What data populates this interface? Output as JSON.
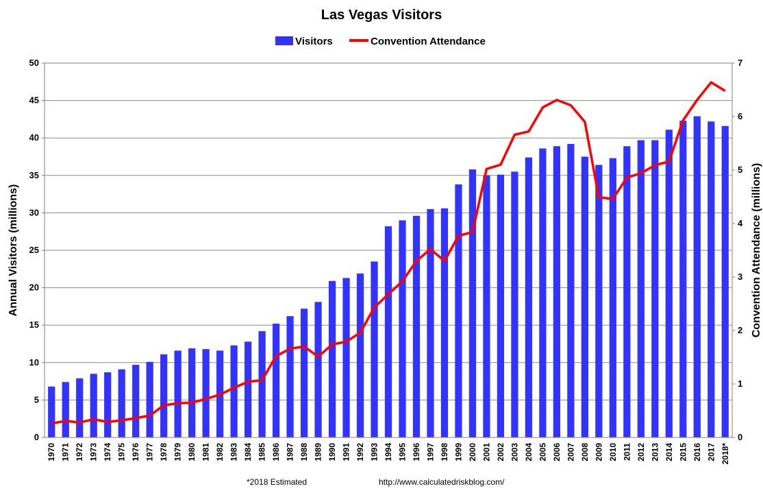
{
  "chart_data": {
    "type": "bar",
    "title": "Las Vegas Visitors",
    "ylabel": "Annual Visitors (millions)",
    "y2label": "Convention Attendance (millions)",
    "ylim": [
      0,
      50
    ],
    "y2lim": [
      0,
      7
    ],
    "yticks": [
      0,
      5,
      10,
      15,
      20,
      25,
      30,
      35,
      40,
      45,
      50
    ],
    "y2ticks": [
      0,
      1,
      2,
      3,
      4,
      5,
      6,
      7
    ],
    "grid": true,
    "legend_position": "top-center",
    "categories": [
      "1970",
      "1971",
      "1972",
      "1973",
      "1974",
      "1975",
      "1976",
      "1977",
      "1978",
      "1979",
      "1980",
      "1981",
      "1982",
      "1983",
      "1984",
      "1985",
      "1986",
      "1987",
      "1988",
      "1989",
      "1990",
      "1991",
      "1992",
      "1993",
      "1994",
      "1995",
      "1996",
      "1997",
      "1998",
      "1999",
      "2000",
      "2001",
      "2002",
      "2003",
      "2004",
      "2005",
      "2006",
      "2007",
      "2008",
      "2009",
      "2010",
      "2011",
      "2012",
      "2013",
      "2014",
      "2015",
      "2016",
      "2017",
      "2018*"
    ],
    "series": [
      {
        "name": "Visitors",
        "type": "bar",
        "axis": "left",
        "color": "#3333ff",
        "values": [
          6.8,
          7.4,
          7.9,
          8.5,
          8.7,
          9.1,
          9.7,
          10.1,
          11.1,
          11.6,
          11.9,
          11.8,
          11.6,
          12.3,
          12.8,
          14.2,
          15.2,
          16.2,
          17.2,
          18.1,
          20.9,
          21.3,
          21.9,
          23.5,
          28.2,
          29.0,
          29.6,
          30.5,
          30.6,
          33.8,
          35.8,
          35.0,
          35.1,
          35.5,
          37.4,
          38.6,
          38.9,
          39.2,
          37.5,
          36.4,
          37.3,
          38.9,
          39.7,
          39.7,
          41.1,
          42.3,
          42.9,
          42.2,
          41.6
        ]
      },
      {
        "name": "Convention Attendance",
        "type": "line",
        "axis": "right",
        "color": "#ff0000",
        "values": [
          0.26,
          0.31,
          0.28,
          0.34,
          0.29,
          0.32,
          0.36,
          0.41,
          0.6,
          0.64,
          0.65,
          0.72,
          0.8,
          0.93,
          1.04,
          1.07,
          1.52,
          1.66,
          1.7,
          1.51,
          1.74,
          1.79,
          1.96,
          2.43,
          2.68,
          2.92,
          3.3,
          3.52,
          3.3,
          3.77,
          3.84,
          5.02,
          5.1,
          5.66,
          5.72,
          6.17,
          6.31,
          6.21,
          5.9,
          4.49,
          4.46,
          4.86,
          4.94,
          5.09,
          5.16,
          5.93,
          6.31,
          6.64,
          6.48
        ]
      }
    ]
  },
  "footer": {
    "note": "*2018 Estimated",
    "url": "http://www.calculatedriskblog.com/"
  }
}
